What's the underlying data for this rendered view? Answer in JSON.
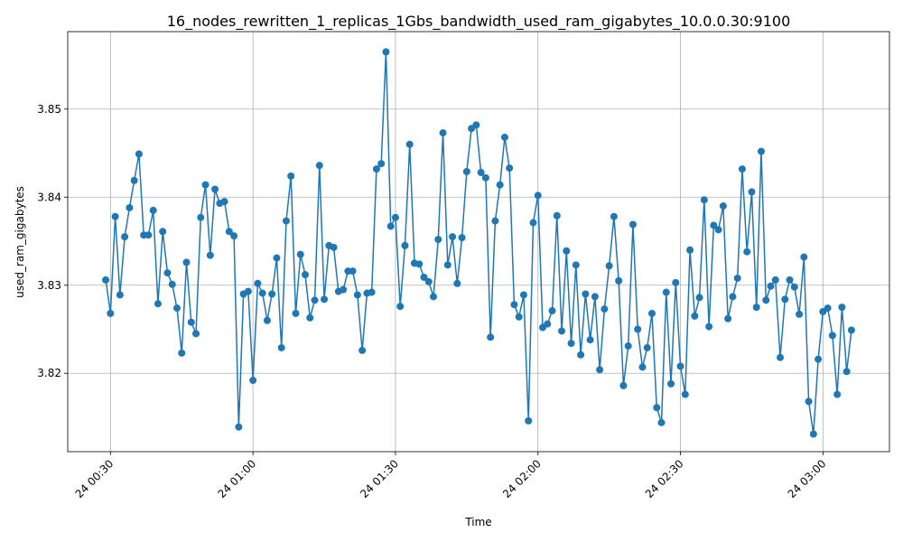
{
  "chart_data": {
    "type": "line",
    "title": "16_nodes_rewritten_1_replicas_1Gbs_bandwidth_used_ram_gigabytes_10.0.0.30:9100",
    "x_label": "Time",
    "y_label": "used_ram_gigabytes",
    "x": [
      "24 00:29",
      "24 00:30",
      "24 00:31",
      "24 00:32",
      "24 00:33",
      "24 00:34",
      "24 00:35",
      "24 00:36",
      "24 00:37",
      "24 00:38",
      "24 00:39",
      "24 00:40",
      "24 00:41",
      "24 00:42",
      "24 00:43",
      "24 00:44",
      "24 00:45",
      "24 00:46",
      "24 00:47",
      "24 00:48",
      "24 00:49",
      "24 00:50",
      "24 00:51",
      "24 00:52",
      "24 00:53",
      "24 00:54",
      "24 00:55",
      "24 00:56",
      "24 00:57",
      "24 00:58",
      "24 00:59",
      "24 01:00",
      "24 01:01",
      "24 01:02",
      "24 01:03",
      "24 01:04",
      "24 01:05",
      "24 01:06",
      "24 01:07",
      "24 01:08",
      "24 01:09",
      "24 01:10",
      "24 01:11",
      "24 01:12",
      "24 01:13",
      "24 01:14",
      "24 01:15",
      "24 01:16",
      "24 01:17",
      "24 01:18",
      "24 01:19",
      "24 01:20",
      "24 01:21",
      "24 01:22",
      "24 01:23",
      "24 01:24",
      "24 01:25",
      "24 01:26",
      "24 01:27",
      "24 01:28",
      "24 01:29",
      "24 01:30",
      "24 01:31",
      "24 01:32",
      "24 01:33",
      "24 01:34",
      "24 01:35",
      "24 01:36",
      "24 01:37",
      "24 01:38",
      "24 01:39",
      "24 01:40",
      "24 01:41",
      "24 01:42",
      "24 01:43",
      "24 01:44",
      "24 01:45",
      "24 01:46",
      "24 01:47",
      "24 01:48",
      "24 01:49",
      "24 01:50",
      "24 01:51",
      "24 01:52",
      "24 01:53",
      "24 01:54",
      "24 01:55",
      "24 01:56",
      "24 01:57",
      "24 01:58",
      "24 01:59",
      "24 02:00",
      "24 02:01",
      "24 02:02",
      "24 02:03",
      "24 02:04",
      "24 02:05",
      "24 02:06",
      "24 02:07",
      "24 02:08",
      "24 02:09",
      "24 02:10",
      "24 02:11",
      "24 02:12",
      "24 02:13",
      "24 02:14",
      "24 02:15",
      "24 02:16",
      "24 02:17",
      "24 02:18",
      "24 02:19",
      "24 02:20",
      "24 02:21",
      "24 02:22",
      "24 02:23",
      "24 02:24",
      "24 02:25",
      "24 02:26",
      "24 02:27",
      "24 02:28",
      "24 02:29",
      "24 02:30",
      "24 02:31",
      "24 02:32",
      "24 02:33",
      "24 02:34",
      "24 02:35",
      "24 02:36",
      "24 02:37",
      "24 02:38",
      "24 02:39",
      "24 02:40",
      "24 02:41",
      "24 02:42",
      "24 02:43",
      "24 02:44",
      "24 02:45",
      "24 02:46",
      "24 02:47",
      "24 02:48",
      "24 02:49",
      "24 02:50",
      "24 02:51",
      "24 02:52",
      "24 02:53",
      "24 02:54",
      "24 02:55",
      "24 02:56",
      "24 02:57",
      "24 02:58",
      "24 02:59",
      "24 03:00",
      "24 03:01",
      "24 03:02",
      "24 03:03",
      "24 03:04",
      "24 03:05",
      "24 03:06"
    ],
    "series": [
      {
        "name": "used_ram_gigabytes",
        "color": "#1f77b4",
        "values": [
          3.8306,
          3.8268,
          3.8378,
          3.8289,
          3.8355,
          3.8388,
          3.8419,
          3.8449,
          3.8357,
          3.8357,
          3.8385,
          3.8279,
          3.8361,
          3.8314,
          3.8301,
          3.8274,
          3.8223,
          3.8326,
          3.8258,
          3.8245,
          3.8377,
          3.8414,
          3.8334,
          3.8409,
          3.8393,
          3.8395,
          3.8361,
          3.8356,
          3.8139,
          3.829,
          3.8293,
          3.8192,
          3.8302,
          3.8291,
          3.826,
          3.829,
          3.8331,
          3.8229,
          3.8373,
          3.8424,
          3.8268,
          3.8335,
          3.8312,
          3.8263,
          3.8283,
          3.8436,
          3.8284,
          3.8345,
          3.8343,
          3.8293,
          3.8295,
          3.8316,
          3.8316,
          3.8289,
          3.8226,
          3.8291,
          3.8292,
          3.8432,
          3.8438,
          3.8565,
          3.8367,
          3.8377,
          3.8276,
          3.8345,
          3.846,
          3.8325,
          3.8324,
          3.8309,
          3.8304,
          3.8287,
          3.8352,
          3.8473,
          3.8323,
          3.8355,
          3.8302,
          3.8354,
          3.8429,
          3.8478,
          3.8482,
          3.8428,
          3.8422,
          3.8241,
          3.8373,
          3.8414,
          3.8468,
          3.8433,
          3.8278,
          3.8264,
          3.8289,
          3.8146,
          3.8371,
          3.8402,
          3.8252,
          3.8256,
          3.8271,
          3.8379,
          3.8248,
          3.8339,
          3.8234,
          3.8323,
          3.8221,
          3.829,
          3.8238,
          3.8287,
          3.8204,
          3.8273,
          3.8322,
          3.8378,
          3.8305,
          3.8186,
          3.8231,
          3.8369,
          3.825,
          3.8207,
          3.8229,
          3.8268,
          3.8161,
          3.8144,
          3.8292,
          3.8188,
          3.8303,
          3.8208,
          3.8176,
          3.834,
          3.8265,
          3.8286,
          3.8397,
          3.8253,
          3.8368,
          3.8363,
          3.839,
          3.8262,
          3.8287,
          3.8308,
          3.8432,
          3.8338,
          3.8406,
          3.8275,
          3.8452,
          3.8283,
          3.8299,
          3.8306,
          3.8218,
          3.8284,
          3.8306,
          3.8298,
          3.8267,
          3.8332,
          3.8168,
          3.8131,
          3.8216,
          3.827,
          3.8274,
          3.8243,
          3.8176,
          3.8275,
          3.8202,
          3.8249
        ]
      }
    ],
    "xlim": [
      "24 00:21",
      "24 03:14"
    ],
    "xticks": [
      "24 00:30",
      "24 01:00",
      "24 01:30",
      "24 02:00",
      "24 02:30",
      "24 03:00"
    ],
    "ylim": [
      3.8111,
      3.8588
    ],
    "yticks": [
      3.82,
      3.83,
      3.84,
      3.85
    ],
    "grid": true
  }
}
